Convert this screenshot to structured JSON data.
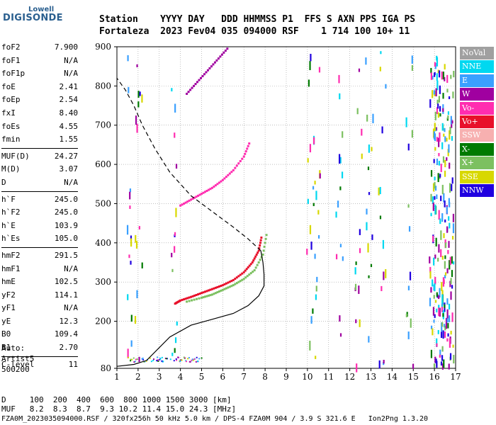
{
  "logo": {
    "top": "Lowell",
    "main": "DIGISONDE"
  },
  "header": {
    "line1": "Station    YYYY DAY   DDD HHMMSS P1  FFS S AXN PPS IGA PS",
    "line2": "Fortaleza  2023 Fev04 035 094000 RSF    1 714 100 10+ 11"
  },
  "params": [
    {
      "name": "foF2",
      "value": "7.900"
    },
    {
      "name": "foF1",
      "value": "N/A"
    },
    {
      "name": "foF1p",
      "value": "N/A"
    },
    {
      "name": "foE",
      "value": "2.41"
    },
    {
      "name": "foEp",
      "value": "2.54"
    },
    {
      "name": "fxI",
      "value": "8.40"
    },
    {
      "name": "foEs",
      "value": "4.55"
    },
    {
      "name": "fmin",
      "value": "1.55"
    },
    {
      "divider": true
    },
    {
      "name": "MUF(D)",
      "value": "24.27"
    },
    {
      "name": "M(D)",
      "value": "3.07"
    },
    {
      "name": "D",
      "value": "N/A"
    },
    {
      "divider": true
    },
    {
      "name": "h`F",
      "value": "245.0"
    },
    {
      "name": "h`F2",
      "value": "245.0"
    },
    {
      "name": "h`E",
      "value": "103.9"
    },
    {
      "name": "h`Es",
      "value": "105.0"
    },
    {
      "divider": true
    },
    {
      "name": "hmF2",
      "value": "291.5"
    },
    {
      "name": "hmF1",
      "value": "N/A"
    },
    {
      "name": "hmE",
      "value": "102.5"
    },
    {
      "name": "yF2",
      "value": "114.1"
    },
    {
      "name": "yF1",
      "value": "N/A"
    },
    {
      "name": "yE",
      "value": "12.3"
    },
    {
      "name": "B0",
      "value": "109.4"
    },
    {
      "name": "B1",
      "value": "2.70"
    },
    {
      "divider": true
    },
    {
      "name": "C-level",
      "value": "11"
    }
  ],
  "auto": {
    "line1": "Auto:",
    "line2": "Artist5",
    "line3": "500200"
  },
  "legend": [
    {
      "label": "NoVal",
      "color": "#a0a0a0"
    },
    {
      "label": "NNE",
      "color": "#00d8f0"
    },
    {
      "label": "E",
      "color": "#3aa0ff"
    },
    {
      "label": "W",
      "color": "#a000a0"
    },
    {
      "label": "Vo-",
      "color": "#ff2db0"
    },
    {
      "label": "Vo+",
      "color": "#e8102a"
    },
    {
      "label": "SSW",
      "color": "#f7b0b0"
    },
    {
      "label": "X-",
      "color": "#007a00"
    },
    {
      "label": "X+",
      "color": "#7cc060"
    },
    {
      "label": "SSE",
      "color": "#d8d800"
    },
    {
      "label": "NNW",
      "color": "#2000e0"
    }
  ],
  "footer": {
    "line1": "D     100  200  400  600  800 1000 1500 3000 [km]",
    "line2": "MUF   8.2  8.3  8.7  9.3 10.2 11.4 15.0 24.3 [MHz]",
    "line3": "FZA0M_2023035094000.RSF / 320fx256h 50 kHz 5.0 km / DPS-4 FZA0M 904 / 3.9 S 321.6 E   Ion2Png 1.3.20"
  },
  "chart_data": {
    "type": "scatter",
    "xlabel": "",
    "ylabel": "",
    "xlim": [
      1,
      17
    ],
    "ylim": [
      80,
      900
    ],
    "x_ticks": [
      1,
      2,
      3,
      4,
      5,
      6,
      7,
      8,
      9,
      10,
      11,
      12,
      13,
      14,
      15,
      16,
      17
    ],
    "y_ticks": [
      80,
      200,
      300,
      400,
      500,
      600,
      700,
      800,
      900
    ],
    "grid": true,
    "series": [
      {
        "name": "Vo+",
        "color": "#e8102a",
        "x": [
          3.75,
          4.0,
          4.5,
          5.0,
          5.5,
          6.0,
          6.5,
          7.0,
          7.4,
          7.7,
          7.85
        ],
        "y": [
          245,
          253,
          262,
          272,
          282,
          292,
          305,
          325,
          350,
          380,
          420
        ]
      },
      {
        "name": "X+",
        "color": "#7cc060",
        "x": [
          4.3,
          5.0,
          5.5,
          6.0,
          6.5,
          7.0,
          7.5,
          7.9,
          8.1
        ],
        "y": [
          250,
          260,
          268,
          280,
          292,
          308,
          330,
          370,
          430
        ]
      },
      {
        "name": "Vo-",
        "color": "#ff2db0",
        "x": [
          4.0,
          4.5,
          5.0,
          5.5,
          6.0,
          6.5,
          7.0,
          7.3
        ],
        "y": [
          495,
          510,
          525,
          540,
          560,
          585,
          620,
          660
        ]
      },
      {
        "name": "W",
        "color": "#a000a0",
        "x": [
          4.3,
          4.8,
          5.3,
          5.8,
          6.3
        ],
        "y": [
          780,
          810,
          840,
          870,
          900
        ]
      }
    ],
    "profile_curve": {
      "x": [
        1.0,
        1.8,
        2.4,
        3.5,
        4.5,
        5.5,
        6.5,
        7.2,
        7.7,
        7.95,
        7.95,
        7.9,
        7.8
      ],
      "y": [
        85,
        90,
        100,
        160,
        190,
        205,
        220,
        240,
        265,
        290,
        320,
        350,
        380
      ]
    },
    "topside_curve": {
      "x": [
        7.8,
        7.2,
        6.5,
        5.5,
        4.5,
        3.5,
        2.8,
        2.2,
        1.8,
        1.4,
        1.0
      ],
      "y": [
        380,
        410,
        440,
        480,
        520,
        580,
        640,
        700,
        750,
        790,
        820
      ]
    }
  }
}
